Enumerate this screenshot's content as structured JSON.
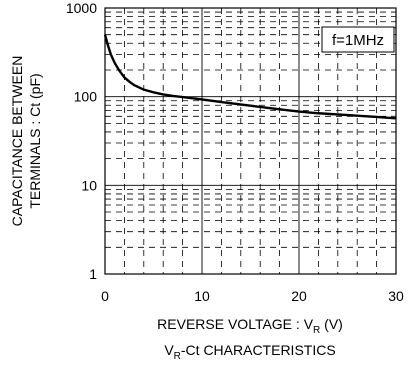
{
  "chart_data": {
    "type": "line",
    "title": "",
    "caption": {
      "main": "V",
      "sub": "R",
      "rest": "-Ct CHARACTERISTICS"
    },
    "xlabel": {
      "main": "REVERSE VOLTAGE : V",
      "sub": "R",
      "rest": " (V)"
    },
    "ylabel": {
      "line1": "CAPACITANCE BETWEEN",
      "line2": "TERMINALS : Ct (pF)"
    },
    "xlim": [
      0,
      30
    ],
    "ylim": [
      1,
      1000
    ],
    "yscale": "log",
    "xticks": [
      "0",
      "10",
      "20",
      "30"
    ],
    "yticks": [
      "1",
      "10",
      "100",
      "1000"
    ],
    "grid": true,
    "annotation": "f=1MHz",
    "series": [
      {
        "x": [
          0,
          0.3,
          0.6,
          1,
          1.5,
          2,
          2.5,
          3,
          4,
          5,
          6,
          7,
          8,
          10,
          12,
          15,
          18,
          20,
          22,
          25,
          28,
          30
        ],
        "y": [
          500,
          380,
          300,
          240,
          195,
          165,
          148,
          135,
          120,
          112,
          106,
          102,
          99,
          93,
          87,
          79,
          72,
          68,
          65,
          62,
          59,
          57
        ]
      }
    ]
  }
}
